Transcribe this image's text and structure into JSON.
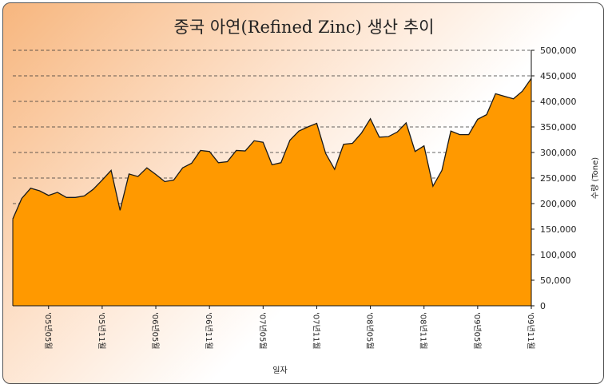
{
  "chart_data": {
    "type": "area",
    "title": "중국 아연(Refined Zinc)  생산 추이",
    "xlabel": "일자",
    "ylabel": "수량 (Tone)",
    "ylim": [
      0,
      500000
    ],
    "y_ticks": [
      "0",
      "50,000",
      "100,000",
      "150,000",
      "200,000",
      "250,000",
      "300,000",
      "350,000",
      "400,000",
      "450,000",
      "500,000"
    ],
    "x_tick_labels": [
      "'05년05월",
      "'05년11월",
      "'06년05월",
      "'06년11월",
      "'07년05월",
      "'07년11월",
      "'08년05월",
      "'08년11월",
      "'09년05월",
      "'09년11월"
    ],
    "grid": "horizontal dashed",
    "fill_color": "#ff9900",
    "x": [
      "2005-01",
      "2005-02",
      "2005-03",
      "2005-04",
      "2005-05",
      "2005-06",
      "2005-07",
      "2005-08",
      "2005-09",
      "2005-10",
      "2005-11",
      "2005-12",
      "2006-01",
      "2006-02",
      "2006-03",
      "2006-04",
      "2006-05",
      "2006-06",
      "2006-07",
      "2006-08",
      "2006-09",
      "2006-10",
      "2006-11",
      "2006-12",
      "2007-01",
      "2007-02",
      "2007-03",
      "2007-04",
      "2007-05",
      "2007-06",
      "2007-07",
      "2007-08",
      "2007-09",
      "2007-10",
      "2007-11",
      "2007-12",
      "2008-01",
      "2008-02",
      "2008-03",
      "2008-04",
      "2008-05",
      "2008-06",
      "2008-07",
      "2008-08",
      "2008-09",
      "2008-10",
      "2008-11",
      "2008-12",
      "2009-01",
      "2009-02",
      "2009-03",
      "2009-04",
      "2009-05",
      "2009-06",
      "2009-07",
      "2009-08",
      "2009-09",
      "2009-10",
      "2009-11"
    ],
    "values": [
      170000,
      210000,
      230000,
      225000,
      216000,
      222000,
      212000,
      212000,
      215000,
      228000,
      246000,
      265000,
      187000,
      258000,
      253000,
      270000,
      257000,
      243000,
      246000,
      270000,
      279000,
      304000,
      302000,
      280000,
      282000,
      304000,
      303000,
      323000,
      320000,
      276000,
      280000,
      324000,
      342000,
      350000,
      357000,
      298000,
      267000,
      316000,
      318000,
      338000,
      366000,
      330000,
      331000,
      340000,
      358000,
      302000,
      313000,
      234000,
      265000,
      342000,
      335000,
      335000,
      365000,
      374000,
      415000,
      410000,
      405000,
      420000,
      445000
    ]
  }
}
